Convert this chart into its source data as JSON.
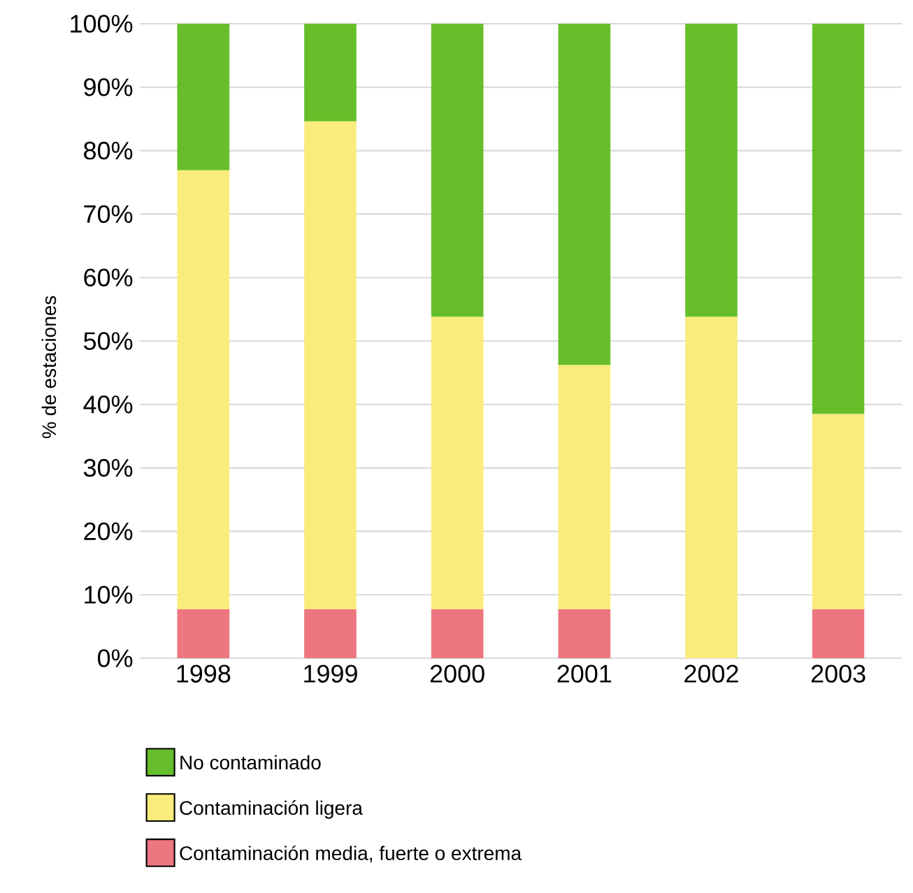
{
  "chart_data": {
    "type": "bar",
    "stacked": true,
    "ylabel": "% de estaciones",
    "categories": [
      "1998",
      "1999",
      "2000",
      "2001",
      "2002",
      "2003"
    ],
    "series": [
      {
        "name": "Contaminación media, fuerte o extrema",
        "color": "#ee7680",
        "values": [
          7.7,
          7.7,
          7.7,
          7.7,
          0,
          7.7
        ]
      },
      {
        "name": "Contaminación ligera",
        "color": "#faec7c",
        "values": [
          69.2,
          76.9,
          46.1,
          38.5,
          53.8,
          30.8
        ]
      },
      {
        "name": "No contaminado",
        "color": "#66bf2a",
        "values": [
          23.1,
          15.4,
          46.2,
          53.8,
          46.2,
          61.5
        ]
      }
    ],
    "ylim": [
      0,
      100
    ],
    "yticks": [
      {
        "value": 0,
        "label": "0%"
      },
      {
        "value": 10,
        "label": "10%"
      },
      {
        "value": 20,
        "label": "20%"
      },
      {
        "value": 30,
        "label": "30%"
      },
      {
        "value": 40,
        "label": "40%"
      },
      {
        "value": 50,
        "label": "50%"
      },
      {
        "value": 60,
        "label": "60%"
      },
      {
        "value": 70,
        "label": "70%"
      },
      {
        "value": 80,
        "label": "80%"
      },
      {
        "value": 90,
        "label": "90%"
      },
      {
        "value": 100,
        "label": "100%"
      }
    ],
    "grid": "y",
    "legend": "bottom"
  }
}
